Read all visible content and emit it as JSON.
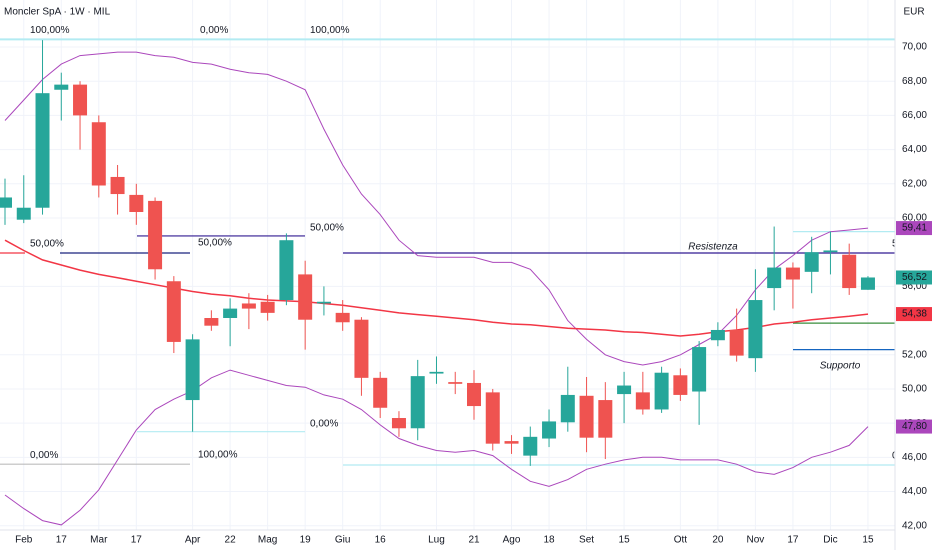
{
  "chart_data": {
    "type": "candlestick",
    "title": "Moncler SpA · 1W · MIL",
    "currency": "EUR",
    "categories": [
      null,
      "Feb",
      null,
      "17",
      null,
      "Mar",
      null,
      "17",
      null,
      null,
      "Apr",
      null,
      "22",
      null,
      "Mag",
      null,
      "19",
      null,
      "Giu",
      null,
      "16",
      null,
      null,
      "Lug",
      null,
      "21",
      null,
      "Ago",
      null,
      "18",
      null,
      "Set",
      null,
      "15",
      null,
      null,
      "Ott",
      null,
      "20",
      null,
      "Nov",
      null,
      "17",
      null,
      "Dic",
      null,
      "15"
    ],
    "open": [
      60.6,
      59.9,
      60.6,
      67.5,
      67.8,
      65.6,
      62.4,
      61.35,
      61.0,
      56.3,
      49.35,
      54.15,
      54.15,
      55.0,
      55.1,
      55.2,
      56.7,
      55.0,
      54.45,
      54.05,
      50.65,
      48.3,
      47.7,
      50.9,
      50.4,
      50.35,
      49.8,
      46.95,
      46.1,
      47.1,
      48.05,
      49.6,
      49.35,
      49.7,
      49.8,
      48.8,
      50.8,
      49.85,
      52.85,
      53.45,
      51.8,
      55.9,
      57.1,
      56.85,
      58.0,
      57.85,
      55.8
    ],
    "high": [
      62.3,
      62.5,
      70.4,
      68.5,
      68.0,
      66.0,
      63.1,
      62.0,
      61.2,
      56.6,
      53.2,
      54.6,
      55.3,
      55.6,
      55.5,
      59.1,
      57.5,
      56.0,
      55.2,
      54.2,
      51.0,
      48.7,
      51.7,
      51.9,
      51.0,
      51.1,
      50.0,
      47.3,
      47.8,
      48.8,
      51.3,
      50.7,
      50.4,
      51.0,
      51.0,
      51.3,
      51.2,
      52.8,
      53.9,
      54.7,
      57.0,
      59.5,
      57.4,
      58.9,
      59.2,
      58.5,
      56.6
    ],
    "low": [
      59.6,
      59.7,
      60.2,
      65.7,
      64.0,
      61.2,
      60.2,
      59.6,
      56.4,
      52.1,
      47.5,
      53.4,
      52.5,
      53.5,
      54.0,
      54.9,
      52.3,
      54.3,
      53.4,
      49.6,
      48.3,
      47.2,
      47.0,
      50.3,
      49.7,
      48.2,
      46.4,
      46.2,
      45.5,
      46.6,
      47.5,
      46.3,
      45.9,
      48.0,
      48.5,
      48.6,
      49.3,
      47.9,
      52.5,
      51.6,
      51.0,
      54.6,
      54.7,
      55.6,
      56.7,
      55.5,
      55.8
    ],
    "close": [
      61.2,
      60.6,
      67.3,
      67.8,
      66.0,
      61.9,
      61.4,
      60.35,
      57.0,
      52.75,
      52.9,
      53.7,
      54.7,
      54.7,
      54.45,
      58.7,
      54.05,
      55.1,
      53.9,
      50.65,
      48.9,
      47.7,
      50.75,
      51.0,
      50.3,
      49.0,
      46.8,
      46.8,
      47.2,
      48.1,
      49.65,
      47.15,
      47.15,
      50.2,
      48.8,
      50.95,
      49.65,
      52.45,
      53.45,
      51.95,
      55.2,
      57.1,
      56.4,
      58.0,
      58.1,
      55.9,
      56.52
    ],
    "up_color": "#26a69a",
    "down_color": "#ef5350",
    "overlays": [
      {
        "color": "#ab47bc",
        "values": [
          65.7,
          66.9,
          68.1,
          69.0,
          69.5,
          69.6,
          69.7,
          69.7,
          69.5,
          69.4,
          69.1,
          69.0,
          68.7,
          68.5,
          68.4,
          68.0,
          67.5,
          65.2,
          63.1,
          61.4,
          60.2,
          58.7,
          57.8,
          57.7,
          57.7,
          57.7,
          57.4,
          57.4,
          57.0,
          55.8,
          54.0,
          52.9,
          52.0,
          51.6,
          51.4,
          51.6,
          52.0,
          52.6,
          53.2,
          54.3,
          55.8,
          57.0,
          57.8,
          58.7,
          59.2,
          59.3,
          59.41
        ]
      },
      {
        "color": "#ab47bc",
        "values": [
          43.8,
          43.0,
          42.3,
          42.05,
          42.9,
          44.1,
          45.85,
          47.6,
          48.8,
          49.4,
          49.9,
          50.65,
          51.1,
          50.8,
          50.5,
          50.2,
          50.1,
          49.65,
          49.4,
          48.8,
          47.9,
          47.1,
          46.7,
          46.4,
          46.3,
          46.4,
          46.1,
          45.3,
          44.6,
          44.3,
          44.7,
          45.3,
          45.6,
          45.85,
          46.0,
          46.0,
          45.85,
          45.85,
          45.85,
          45.6,
          45.15,
          45.0,
          45.4,
          46.0,
          46.3,
          46.7,
          47.8
        ]
      },
      {
        "color": "#f23645",
        "values": [
          58.7,
          58.1,
          57.55,
          57.25,
          56.95,
          56.7,
          56.5,
          56.3,
          56.1,
          55.9,
          55.7,
          55.55,
          55.45,
          55.3,
          55.2,
          55.15,
          55.1,
          55.0,
          54.9,
          54.75,
          54.6,
          54.45,
          54.35,
          54.25,
          54.15,
          54.05,
          53.9,
          53.8,
          53.75,
          53.65,
          53.55,
          53.5,
          53.45,
          53.35,
          53.3,
          53.2,
          53.1,
          53.2,
          53.35,
          53.45,
          53.6,
          53.8,
          53.9,
          54.05,
          54.15,
          54.25,
          54.38
        ]
      }
    ],
    "ylim": [
      41.75,
      72.75
    ],
    "yticks": [
      {
        "value": 42,
        "label": "42,00"
      },
      {
        "value": 44,
        "label": "44,00"
      },
      {
        "value": 46,
        "label": "46,00"
      },
      {
        "value": 48,
        "label": "48,00"
      },
      {
        "value": 50,
        "label": "50,00"
      },
      {
        "value": 52,
        "label": "52,00"
      },
      {
        "value": 56,
        "label": "56,00"
      },
      {
        "value": 60,
        "label": "60,00"
      },
      {
        "value": 62,
        "label": "62,00"
      },
      {
        "value": 64,
        "label": "64,00"
      },
      {
        "value": 66,
        "label": "66,00"
      },
      {
        "value": 68,
        "label": "68,00"
      },
      {
        "value": 70,
        "label": "70,00"
      }
    ],
    "grid": true,
    "fib_levels": [
      {
        "value": 70.45,
        "label": "100,00%",
        "color": "#b2ebf2"
      },
      {
        "value": 57.95,
        "label": "50,00%",
        "color": "#f23645"
      },
      {
        "value": 45.6,
        "label": "0,00%",
        "color": "#bdbdbd"
      },
      {
        "value": 70.45,
        "label": "0,00%",
        "color": "#b2ebf2"
      },
      {
        "value": 58.95,
        "label": "50,00%",
        "color": "#311b92"
      },
      {
        "value": 47.5,
        "label": "100,00%",
        "color": "#b2ebf2"
      },
      {
        "value": 70.45,
        "label": "100,00%",
        "color": "#b2ebf2"
      },
      {
        "value": 57.95,
        "label": "50,00%",
        "color": "#311b92"
      },
      {
        "value": 45.55,
        "label": "0,00%",
        "color": "#b2ebf2"
      }
    ],
    "lines": [
      {
        "value": 57.95,
        "color": "#1a237e"
      },
      {
        "value": 59.2,
        "color": "#b2ebf2"
      },
      {
        "value": 53.85,
        "color": "#388e3c"
      },
      {
        "value": 52.3,
        "color": "#1565c0"
      }
    ],
    "annotations": [
      {
        "text": "Resistenza",
        "color": "#ba68c8"
      },
      {
        "text": "Supporto",
        "color": "#1565c0"
      }
    ],
    "price_tags": [
      {
        "value": 59.41,
        "label": "59,41",
        "color": "#ab47bc"
      },
      {
        "value": 56.52,
        "label": "56,52",
        "color": "#26a69a"
      },
      {
        "value": 54.38,
        "label": "54,38",
        "color": "#f23645"
      },
      {
        "value": 47.8,
        "label": "47,80",
        "color": "#ab47bc"
      }
    ]
  }
}
